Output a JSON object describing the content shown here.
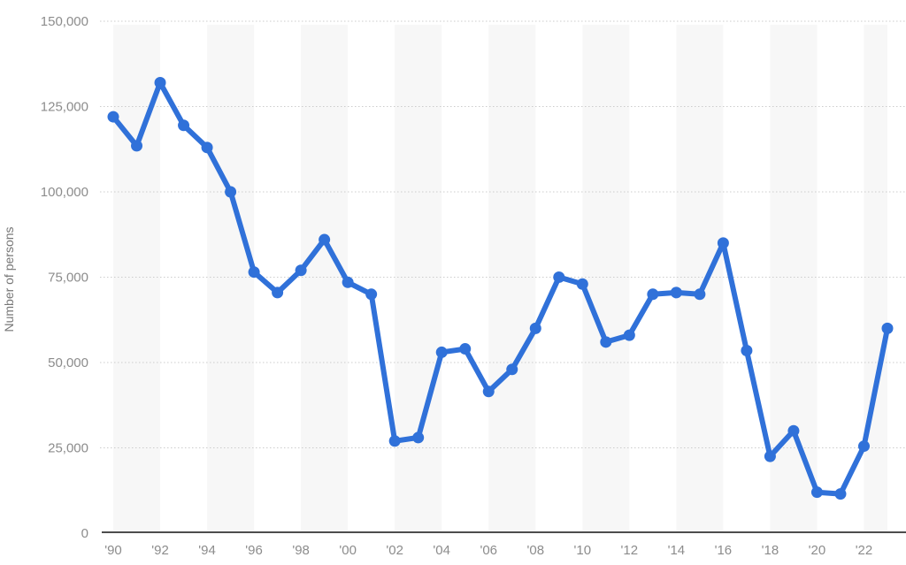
{
  "chart": {
    "y_axis_title": "Number of persons",
    "colors": {
      "line": "#3071d9",
      "point": "#3071d9",
      "band": "#f7f7f7",
      "gridline": "#cccccc",
      "axis_line": "#4d4d4d",
      "tick_label": "#8c8c8c",
      "y_axis_title_color": "#777777",
      "background": "#ffffff"
    }
  },
  "chart_data": {
    "type": "line",
    "title": "",
    "series_name": "Number of persons",
    "x": [
      1990,
      1991,
      1992,
      1993,
      1994,
      1995,
      1996,
      1997,
      1998,
      1999,
      2000,
      2001,
      2002,
      2003,
      2004,
      2005,
      2006,
      2007,
      2008,
      2009,
      2010,
      2011,
      2012,
      2013,
      2014,
      2015,
      2016,
      2017,
      2018,
      2019,
      2020,
      2021,
      2022,
      2023
    ],
    "values": [
      122000,
      113500,
      132000,
      119500,
      113000,
      100000,
      76500,
      70500,
      77000,
      86000,
      73500,
      70000,
      27000,
      28000,
      53000,
      54000,
      41500,
      48000,
      60000,
      75000,
      73000,
      56000,
      58000,
      70000,
      70500,
      70000,
      85000,
      53500,
      22500,
      30000,
      12000,
      11500,
      25500,
      60000
    ],
    "xlabel": "",
    "ylabel": "Number of persons",
    "ylim": [
      0,
      150000
    ],
    "yticks": [
      {
        "value": 0,
        "label": "0"
      },
      {
        "value": 25000,
        "label": "25,000"
      },
      {
        "value": 50000,
        "label": "50,000"
      },
      {
        "value": 75000,
        "label": "75,000"
      },
      {
        "value": 100000,
        "label": "100,000"
      },
      {
        "value": 125000,
        "label": "125,000"
      },
      {
        "value": 150000,
        "label": "150,000"
      }
    ],
    "xticks": [
      {
        "index": 0,
        "label": "'90"
      },
      {
        "index": 2,
        "label": "'92"
      },
      {
        "index": 4,
        "label": "'94"
      },
      {
        "index": 6,
        "label": "'96"
      },
      {
        "index": 8,
        "label": "'98"
      },
      {
        "index": 10,
        "label": "'00"
      },
      {
        "index": 12,
        "label": "'02"
      },
      {
        "index": 14,
        "label": "'04"
      },
      {
        "index": 16,
        "label": "'06"
      },
      {
        "index": 18,
        "label": "'08"
      },
      {
        "index": 20,
        "label": "'10"
      },
      {
        "index": 22,
        "label": "'12"
      },
      {
        "index": 24,
        "label": "'14"
      },
      {
        "index": 26,
        "label": "'16"
      },
      {
        "index": 28,
        "label": "'18"
      },
      {
        "index": 30,
        "label": "'20"
      },
      {
        "index": 32,
        "label": "'22"
      }
    ],
    "grid": "horizontal-dotted",
    "legend": "none",
    "plot_bands": "alternating vertical light-gray bands, 2 years wide, every 4 years starting 1990"
  }
}
